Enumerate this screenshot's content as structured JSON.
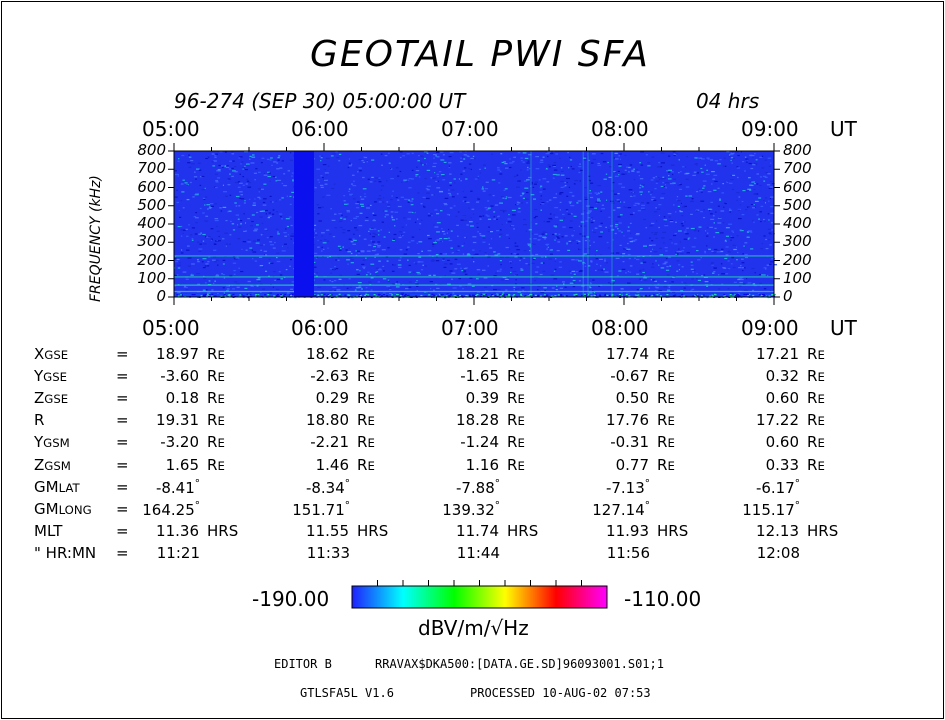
{
  "title": "GEOTAIL  PWI  SFA",
  "subtitle": {
    "date": "96-274 (SEP 30) 05:00:00 UT",
    "span": "04 hrs"
  },
  "chart_data": {
    "type": "heatmap",
    "title": "GEOTAIL  PWI  SFA",
    "x_ticks": [
      "05:00",
      "06:00",
      "07:00",
      "08:00",
      "09:00"
    ],
    "x_unit": "UT",
    "xlim": [
      "05:00",
      "09:00"
    ],
    "y_ticks": [
      "800",
      "700",
      "600",
      "500",
      "400",
      "300",
      "200",
      "100",
      "0"
    ],
    "ylabel": "FREQUENCY (kHz)",
    "ylim": [
      0,
      800
    ],
    "colorbar": {
      "min": "-190.00",
      "max": "-110.00",
      "unit": "dBV/m/√Hz"
    },
    "features": {
      "data_gap": {
        "start": "05:48",
        "end": "05:56"
      },
      "bands_khz": [
        30,
        65,
        110,
        225
      ]
    }
  },
  "ephemeris": {
    "rows": [
      {
        "label": "X",
        "sub": "GSE",
        "eq": "=",
        "values": [
          "18.97",
          "18.62",
          "18.21",
          "17.74",
          "17.21"
        ],
        "unit": "RE"
      },
      {
        "label": "Y",
        "sub": "GSE",
        "eq": "=",
        "values": [
          "-3.60",
          "-2.63",
          "-1.65",
          "-0.67",
          "0.32"
        ],
        "unit": "RE"
      },
      {
        "label": "Z",
        "sub": "GSE",
        "eq": "=",
        "values": [
          "0.18",
          "0.29",
          "0.39",
          "0.50",
          "0.60"
        ],
        "unit": "RE"
      },
      {
        "label": "R",
        "sub": "",
        "eq": "=",
        "values": [
          "19.31",
          "18.80",
          "18.28",
          "17.76",
          "17.22"
        ],
        "unit": "RE"
      },
      {
        "label": "Y",
        "sub": "GSM",
        "eq": "=",
        "values": [
          "-3.20",
          "-2.21",
          "-1.24",
          "-0.31",
          "0.60"
        ],
        "unit": "RE"
      },
      {
        "label": "Z",
        "sub": "GSM",
        "eq": "=",
        "values": [
          "1.65",
          "1.46",
          "1.16",
          "0.77",
          "0.33"
        ],
        "unit": "RE"
      },
      {
        "label": "GM",
        "sub": "LAT",
        "eq": "=",
        "values": [
          "-8.41",
          "-8.34",
          "-7.88",
          "-7.13",
          "-6.17"
        ],
        "unit": "°"
      },
      {
        "label": "GM",
        "sub": "LONG",
        "eq": "=",
        "values": [
          "164.25",
          "151.71",
          "139.32",
          "127.14",
          "115.17"
        ],
        "unit": "°"
      },
      {
        "label": "MLT",
        "sub": "",
        "eq": "=",
        "values": [
          "11.36",
          "11.55",
          "11.74",
          "11.93",
          "12.13"
        ],
        "unit": "HRS"
      },
      {
        "label": "\" HR:MN",
        "sub": "",
        "eq": "=",
        "values": [
          "11:21",
          "11:33",
          "11:44",
          "11:56",
          "12:08"
        ],
        "unit": ""
      }
    ]
  },
  "footer": {
    "editor": "EDITOR B",
    "file": "RRAVAX$DKA500:[DATA.GE.SD]96093001.S01;1",
    "program": "GTLSFA5L V1.6",
    "processed": "PROCESSED 10-AUG-02  07:53"
  },
  "colors": {
    "background": "#2233ee",
    "gap": "#0a10ee",
    "band": "#22ddaa",
    "colorbar_stops": [
      "#2020ff",
      "#00ffff",
      "#00ff00",
      "#ffff00",
      "#ff0000",
      "#ff00ff"
    ]
  }
}
